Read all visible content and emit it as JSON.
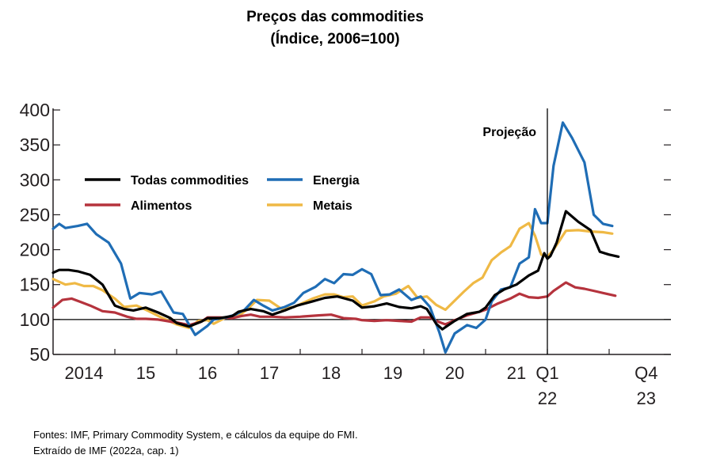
{
  "header": {
    "title": "Preços das commodities",
    "subtitle": "(Índice, 2006=100)"
  },
  "footer": {
    "source_line1": "Fontes: IMF, Primary Commodity System, e cálculos da equipe do FMI.",
    "source_line2": "Extraído de IMF (2022a, cap. 1)"
  },
  "chart_data": {
    "type": "line",
    "title": "Preços das commodities",
    "subtitle": "(Índice, 2006=100)",
    "xlabel": "",
    "ylabel": "",
    "ylim": [
      50,
      400
    ],
    "xlim": [
      2014.0,
      2024.0
    ],
    "y_ticks": [
      50,
      100,
      150,
      200,
      250,
      300,
      350,
      400
    ],
    "x_tick_labels": [
      {
        "x": 2014.5,
        "lines": [
          "2014"
        ]
      },
      {
        "x": 2015.5,
        "lines": [
          "15"
        ]
      },
      {
        "x": 2016.5,
        "lines": [
          "16"
        ]
      },
      {
        "x": 2017.5,
        "lines": [
          "17"
        ]
      },
      {
        "x": 2018.5,
        "lines": [
          "18"
        ]
      },
      {
        "x": 2019.5,
        "lines": [
          "19"
        ]
      },
      {
        "x": 2020.5,
        "lines": [
          "20"
        ]
      },
      {
        "x": 2021.5,
        "lines": [
          "21"
        ]
      },
      {
        "x": 2022.0,
        "lines": [
          "Q1",
          "22"
        ]
      },
      {
        "x": 2023.6,
        "lines": [
          "Q4",
          "23"
        ]
      }
    ],
    "reference_line_y": 100,
    "projection": {
      "x": 2022.0,
      "label": "Projeção"
    },
    "legend_placement": "top-left",
    "grid": false,
    "series": [
      {
        "name": "Todas commodities",
        "color": "#000000",
        "points": [
          [
            2014.0,
            167
          ],
          [
            2014.1,
            171
          ],
          [
            2014.25,
            171
          ],
          [
            2014.4,
            169
          ],
          [
            2014.6,
            164
          ],
          [
            2014.8,
            150
          ],
          [
            2015.0,
            120
          ],
          [
            2015.15,
            115
          ],
          [
            2015.3,
            113
          ],
          [
            2015.5,
            117
          ],
          [
            2015.7,
            110
          ],
          [
            2015.9,
            102
          ],
          [
            2016.0,
            95
          ],
          [
            2016.2,
            90
          ],
          [
            2016.4,
            97
          ],
          [
            2016.5,
            102
          ],
          [
            2016.7,
            102
          ],
          [
            2016.9,
            105
          ],
          [
            2017.0,
            111
          ],
          [
            2017.2,
            115
          ],
          [
            2017.4,
            112
          ],
          [
            2017.55,
            107
          ],
          [
            2017.75,
            113
          ],
          [
            2017.95,
            120
          ],
          [
            2018.2,
            126
          ],
          [
            2018.4,
            131
          ],
          [
            2018.6,
            133
          ],
          [
            2018.85,
            127
          ],
          [
            2019.0,
            117
          ],
          [
            2019.2,
            119
          ],
          [
            2019.4,
            123
          ],
          [
            2019.6,
            118
          ],
          [
            2019.8,
            116
          ],
          [
            2019.95,
            119
          ],
          [
            2020.05,
            115
          ],
          [
            2020.2,
            94
          ],
          [
            2020.3,
            86
          ],
          [
            2020.5,
            98
          ],
          [
            2020.7,
            108
          ],
          [
            2020.9,
            111
          ],
          [
            2021.0,
            117
          ],
          [
            2021.15,
            135
          ],
          [
            2021.3,
            143
          ],
          [
            2021.5,
            150
          ],
          [
            2021.7,
            163
          ],
          [
            2021.85,
            170
          ],
          [
            2021.95,
            195
          ],
          [
            2022.0,
            187
          ],
          [
            2022.05,
            191
          ],
          [
            2022.15,
            210
          ],
          [
            2022.3,
            255
          ],
          [
            2022.5,
            240
          ],
          [
            2022.7,
            228
          ],
          [
            2022.85,
            197
          ],
          [
            2023.0,
            193
          ],
          [
            2023.15,
            190
          ]
        ]
      },
      {
        "name": "Energia",
        "color": "#1f6db5",
        "points": [
          [
            2014.0,
            230
          ],
          [
            2014.1,
            237
          ],
          [
            2014.2,
            231
          ],
          [
            2014.4,
            234
          ],
          [
            2014.55,
            237
          ],
          [
            2014.7,
            222
          ],
          [
            2014.9,
            210
          ],
          [
            2015.1,
            180
          ],
          [
            2015.25,
            130
          ],
          [
            2015.4,
            138
          ],
          [
            2015.6,
            136
          ],
          [
            2015.75,
            140
          ],
          [
            2015.95,
            110
          ],
          [
            2016.1,
            108
          ],
          [
            2016.3,
            78
          ],
          [
            2016.5,
            91
          ],
          [
            2016.6,
            100
          ],
          [
            2016.8,
            103
          ],
          [
            2016.95,
            107
          ],
          [
            2017.1,
            114
          ],
          [
            2017.25,
            128
          ],
          [
            2017.4,
            120
          ],
          [
            2017.55,
            113
          ],
          [
            2017.75,
            118
          ],
          [
            2017.9,
            124
          ],
          [
            2018.05,
            138
          ],
          [
            2018.25,
            147
          ],
          [
            2018.4,
            158
          ],
          [
            2018.55,
            152
          ],
          [
            2018.7,
            165
          ],
          [
            2018.85,
            164
          ],
          [
            2019.0,
            172
          ],
          [
            2019.15,
            165
          ],
          [
            2019.3,
            135
          ],
          [
            2019.45,
            136
          ],
          [
            2019.6,
            143
          ],
          [
            2019.8,
            128
          ],
          [
            2019.95,
            133
          ],
          [
            2020.1,
            118
          ],
          [
            2020.25,
            82
          ],
          [
            2020.35,
            53
          ],
          [
            2020.5,
            80
          ],
          [
            2020.7,
            92
          ],
          [
            2020.85,
            88
          ],
          [
            2021.0,
            100
          ],
          [
            2021.1,
            126
          ],
          [
            2021.25,
            143
          ],
          [
            2021.4,
            146
          ],
          [
            2021.55,
            180
          ],
          [
            2021.7,
            189
          ],
          [
            2021.8,
            258
          ],
          [
            2021.9,
            238
          ],
          [
            2022.0,
            238
          ],
          [
            2022.1,
            320
          ],
          [
            2022.25,
            382
          ],
          [
            2022.4,
            360
          ],
          [
            2022.6,
            325
          ],
          [
            2022.75,
            250
          ],
          [
            2022.9,
            237
          ],
          [
            2023.05,
            234
          ]
        ]
      },
      {
        "name": "Alimentos",
        "color": "#b5333d",
        "points": [
          [
            2014.0,
            117
          ],
          [
            2014.15,
            128
          ],
          [
            2014.3,
            130
          ],
          [
            2014.45,
            125
          ],
          [
            2014.6,
            120
          ],
          [
            2014.8,
            112
          ],
          [
            2015.0,
            110
          ],
          [
            2015.2,
            104
          ],
          [
            2015.35,
            101
          ],
          [
            2015.5,
            101
          ],
          [
            2015.7,
            100
          ],
          [
            2015.9,
            97
          ],
          [
            2016.0,
            96
          ],
          [
            2016.2,
            92
          ],
          [
            2016.4,
            97
          ],
          [
            2016.5,
            103
          ],
          [
            2016.7,
            103
          ],
          [
            2016.9,
            102
          ],
          [
            2017.05,
            105
          ],
          [
            2017.2,
            107
          ],
          [
            2017.35,
            104
          ],
          [
            2017.55,
            104
          ],
          [
            2017.75,
            103
          ],
          [
            2018.0,
            104
          ],
          [
            2018.3,
            106
          ],
          [
            2018.5,
            107
          ],
          [
            2018.7,
            102
          ],
          [
            2018.9,
            101
          ],
          [
            2019.0,
            99
          ],
          [
            2019.2,
            98
          ],
          [
            2019.4,
            99
          ],
          [
            2019.6,
            98
          ],
          [
            2019.8,
            97
          ],
          [
            2019.95,
            103
          ],
          [
            2020.1,
            103
          ],
          [
            2020.2,
            98
          ],
          [
            2020.35,
            93
          ],
          [
            2020.5,
            99
          ],
          [
            2020.7,
            106
          ],
          [
            2020.9,
            111
          ],
          [
            2021.0,
            114
          ],
          [
            2021.2,
            123
          ],
          [
            2021.4,
            130
          ],
          [
            2021.55,
            137
          ],
          [
            2021.7,
            132
          ],
          [
            2021.85,
            131
          ],
          [
            2022.0,
            133
          ],
          [
            2022.1,
            141
          ],
          [
            2022.3,
            153
          ],
          [
            2022.45,
            146
          ],
          [
            2022.6,
            144
          ],
          [
            2022.8,
            140
          ],
          [
            2023.0,
            136
          ],
          [
            2023.1,
            134
          ]
        ]
      },
      {
        "name": "Metais",
        "color": "#efb945",
        "points": [
          [
            2014.0,
            158
          ],
          [
            2014.1,
            154
          ],
          [
            2014.2,
            150
          ],
          [
            2014.35,
            152
          ],
          [
            2014.5,
            148
          ],
          [
            2014.65,
            148
          ],
          [
            2014.8,
            142
          ],
          [
            2015.0,
            130
          ],
          [
            2015.15,
            118
          ],
          [
            2015.35,
            120
          ],
          [
            2015.55,
            112
          ],
          [
            2015.75,
            103
          ],
          [
            2016.0,
            93
          ],
          [
            2016.2,
            88
          ],
          [
            2016.35,
            98
          ],
          [
            2016.5,
            99
          ],
          [
            2016.6,
            94
          ],
          [
            2016.8,
            103
          ],
          [
            2017.0,
            105
          ],
          [
            2017.15,
            115
          ],
          [
            2017.3,
            128
          ],
          [
            2017.5,
            127
          ],
          [
            2017.7,
            115
          ],
          [
            2017.9,
            118
          ],
          [
            2018.0,
            122
          ],
          [
            2018.2,
            130
          ],
          [
            2018.4,
            136
          ],
          [
            2018.55,
            136
          ],
          [
            2018.7,
            132
          ],
          [
            2018.85,
            133
          ],
          [
            2019.0,
            120
          ],
          [
            2019.2,
            126
          ],
          [
            2019.35,
            133
          ],
          [
            2019.55,
            137
          ],
          [
            2019.75,
            148
          ],
          [
            2019.9,
            131
          ],
          [
            2020.05,
            133
          ],
          [
            2020.2,
            121
          ],
          [
            2020.35,
            114
          ],
          [
            2020.5,
            127
          ],
          [
            2020.65,
            140
          ],
          [
            2020.8,
            152
          ],
          [
            2020.95,
            160
          ],
          [
            2021.1,
            185
          ],
          [
            2021.25,
            196
          ],
          [
            2021.4,
            205
          ],
          [
            2021.55,
            230
          ],
          [
            2021.7,
            238
          ],
          [
            2021.8,
            220
          ],
          [
            2021.9,
            193
          ],
          [
            2022.0,
            190
          ],
          [
            2022.1,
            200
          ],
          [
            2022.3,
            227
          ],
          [
            2022.5,
            228
          ],
          [
            2022.7,
            226
          ],
          [
            2022.9,
            225
          ],
          [
            2023.05,
            223
          ]
        ]
      }
    ]
  }
}
